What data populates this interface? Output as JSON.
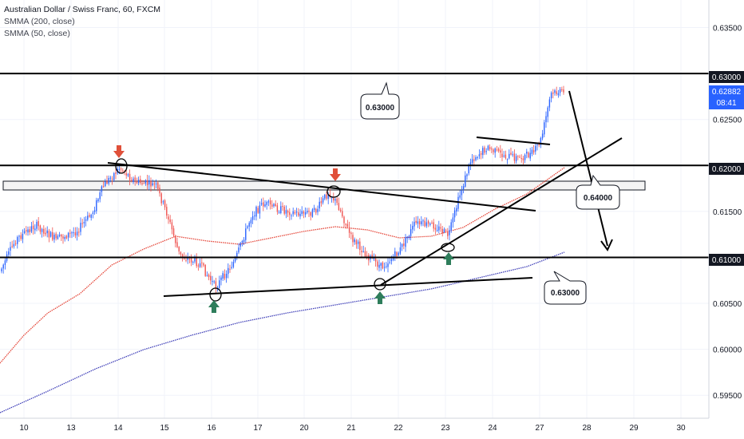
{
  "legend": {
    "title": "Australian Dollar / Swiss Franc, 60, FXCM",
    "ind1": "SMMA (200, close)",
    "ind2": "SMMA (50, close)"
  },
  "price_axis": {
    "ticks": [
      "0.63500",
      "0.63000",
      "0.62500",
      "0.62000",
      "0.61500",
      "0.61000",
      "0.60500",
      "0.60000",
      "0.59500"
    ],
    "last_price": "0.62882",
    "countdown": "08:41"
  },
  "time_axis": {
    "ticks": [
      "10",
      "13",
      "14",
      "15",
      "16",
      "17",
      "20",
      "21",
      "22",
      "23",
      "24",
      "27",
      "28",
      "29",
      "30"
    ]
  },
  "callouts": [
    "0.63000",
    "0.64000",
    "0.63000"
  ],
  "colors": {
    "up": "#2962ff",
    "down": "#ef5350",
    "smma200": "#3f3fb8",
    "smma50": "#e5483b",
    "arrow_down": "#e0503a",
    "arrow_up": "#2e7d5b"
  },
  "chart_data": {
    "type": "line",
    "series": [
      {
        "name": "SMMA (200, close)"
      },
      {
        "name": "SMMA (50, close)"
      }
    ],
    "x_ticks": [
      "10",
      "13",
      "14",
      "15",
      "16",
      "17",
      "20",
      "21",
      "22",
      "23",
      "24",
      "27",
      "28",
      "29",
      "30"
    ],
    "ylim": [
      0.5925,
      0.638
    ],
    "horizontal_levels": [
      0.63,
      0.62,
      0.61
    ],
    "last_price": 0.62882
  }
}
